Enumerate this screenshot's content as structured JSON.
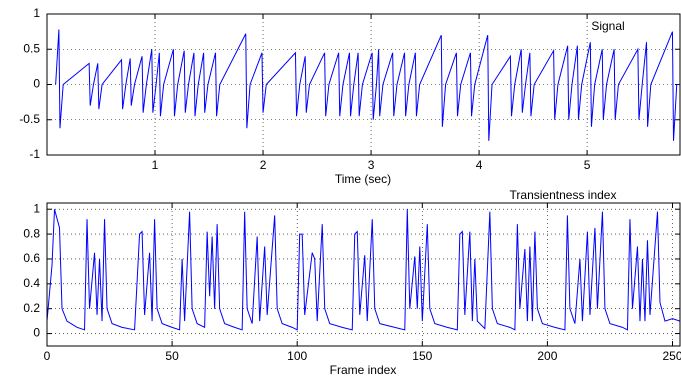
{
  "chart_data": [
    {
      "type": "line",
      "title": "Signal",
      "x_label": "Time (sec)",
      "xlim": [
        0,
        5.86
      ],
      "ylim": [
        -1,
        1
      ],
      "xticks": [
        1,
        2,
        3,
        4,
        5
      ],
      "yticks": [
        -1,
        -0.5,
        0,
        0.5,
        1
      ],
      "grid": true,
      "series": [
        {
          "name": "Signal",
          "color": "#0000ff",
          "x": [
            0.08,
            0.11,
            0.12,
            0.15,
            0.39,
            0.4,
            0.43,
            0.47,
            0.48,
            0.51,
            0.69,
            0.7,
            0.73,
            0.77,
            0.78,
            0.81,
            0.88,
            0.89,
            0.92,
            0.97,
            0.98,
            1.01,
            1.04,
            1.05,
            1.08,
            1.17,
            1.18,
            1.21,
            1.27,
            1.28,
            1.31,
            1.36,
            1.37,
            1.4,
            1.45,
            1.46,
            1.49,
            1.56,
            1.57,
            1.6,
            1.84,
            1.85,
            1.88,
            1.99,
            2.0,
            2.03,
            2.3,
            2.31,
            2.34,
            2.39,
            2.4,
            2.43,
            2.57,
            2.58,
            2.61,
            2.7,
            2.71,
            2.74,
            2.8,
            2.81,
            2.84,
            2.88,
            2.89,
            2.92,
            3.01,
            3.02,
            3.05,
            3.07,
            3.08,
            3.11,
            3.2,
            3.21,
            3.24,
            3.31,
            3.32,
            3.35,
            3.41,
            3.42,
            3.45,
            3.65,
            3.66,
            3.69,
            3.79,
            3.8,
            3.83,
            3.92,
            3.93,
            3.96,
            4.08,
            4.09,
            4.12,
            4.29,
            4.3,
            4.33,
            4.39,
            4.4,
            4.43,
            4.47,
            4.48,
            4.51,
            4.69,
            4.7,
            4.73,
            4.82,
            4.83,
            4.86,
            4.91,
            4.92,
            4.95,
            5.03,
            5.04,
            5.07,
            5.14,
            5.15,
            5.18,
            5.25,
            5.26,
            5.29,
            5.47,
            5.48,
            5.51,
            5.55,
            5.56,
            5.59,
            5.79,
            5.8,
            5.83,
            5.86
          ],
          "values": [
            0,
            0.78,
            -0.62,
            0,
            0.3,
            -0.3,
            0,
            0.3,
            -0.35,
            0,
            0.35,
            -0.35,
            0,
            0.37,
            -0.3,
            0,
            0.4,
            -0.4,
            0,
            0.5,
            -0.4,
            0,
            0.45,
            -0.45,
            0,
            0.5,
            -0.45,
            0,
            0.48,
            -0.4,
            0,
            0.45,
            -0.45,
            0,
            0.45,
            -0.4,
            0,
            0.45,
            -0.45,
            0,
            0.72,
            -0.62,
            0,
            0.45,
            -0.4,
            0,
            0.45,
            -0.45,
            0,
            0.4,
            -0.4,
            0,
            0.45,
            -0.45,
            0,
            0.45,
            -0.45,
            0,
            0.45,
            -0.45,
            0,
            0.45,
            -0.45,
            0,
            0.45,
            -0.5,
            0,
            0.5,
            -0.45,
            0,
            0.45,
            -0.45,
            0,
            0.45,
            -0.45,
            0,
            0.45,
            -0.45,
            0,
            0.7,
            -0.6,
            0,
            0.45,
            -0.45,
            0,
            0.45,
            -0.45,
            0,
            0.7,
            -0.8,
            0,
            0.4,
            -0.45,
            0,
            0.5,
            -0.4,
            0,
            0.45,
            -0.45,
            0,
            0.48,
            -0.5,
            0,
            0.55,
            -0.5,
            0,
            0.55,
            -0.5,
            0,
            0.6,
            -0.6,
            0,
            0.5,
            -0.5,
            0,
            0.5,
            -0.5,
            0,
            0.5,
            -0.5,
            0,
            0.6,
            -0.6,
            0,
            0.75,
            -0.8,
            0,
            0
          ]
        }
      ]
    },
    {
      "type": "line",
      "title": "Transientness index",
      "x_label": "Frame index",
      "xlim": [
        0,
        253
      ],
      "ylim": [
        -0.1,
        1.05
      ],
      "xticks": [
        0,
        50,
        100,
        150,
        200,
        250
      ],
      "yticks": [
        0,
        0.2,
        0.4,
        0.6,
        0.8,
        1
      ],
      "grid": true,
      "series": [
        {
          "name": "Transientness index",
          "color": "#0000ff",
          "x": [
            0,
            2,
            3,
            5,
            6,
            8,
            12,
            15,
            16,
            17,
            19,
            20,
            21,
            22,
            23,
            24,
            26,
            30,
            35,
            37,
            38,
            39,
            41,
            42,
            43,
            44,
            46,
            50,
            53,
            54,
            55,
            57,
            58,
            60,
            63,
            64,
            65,
            66,
            67,
            68,
            69,
            71,
            75,
            78,
            79,
            80,
            82,
            84,
            85,
            87,
            88,
            91,
            92,
            94,
            98,
            100,
            101,
            102,
            103,
            106,
            107,
            108,
            110,
            111,
            113,
            118,
            122,
            123,
            124,
            125,
            127,
            128,
            130,
            131,
            133,
            139,
            143,
            144,
            145,
            147,
            148,
            149,
            150,
            152,
            153,
            155,
            160,
            164,
            165,
            166,
            167,
            169,
            170,
            171,
            172,
            175,
            177,
            178,
            180,
            185,
            187,
            188,
            189,
            191,
            192,
            193,
            194,
            195,
            196,
            198,
            203,
            207,
            208,
            209,
            211,
            213,
            214,
            216,
            217,
            219,
            220,
            222,
            223,
            225,
            230,
            232,
            233,
            234,
            236,
            237,
            238,
            239,
            240,
            241,
            244,
            245,
            247,
            250,
            253
          ],
          "values": [
            0.1,
            0.55,
            1.0,
            0.85,
            0.2,
            0.1,
            0.05,
            0.03,
            0.92,
            0.2,
            0.65,
            0.15,
            0.6,
            0.1,
            0.92,
            0.2,
            0.08,
            0.05,
            0.03,
            0.8,
            0.82,
            0.15,
            0.65,
            0.1,
            0.92,
            0.2,
            0.08,
            0.05,
            0.03,
            0.6,
            0.1,
            0.98,
            0.2,
            0.08,
            0.05,
            0.82,
            0.3,
            0.78,
            0.2,
            0.88,
            0.2,
            0.08,
            0.05,
            0.03,
            0.98,
            0.2,
            0.08,
            0.78,
            0.1,
            0.7,
            0.15,
            0.95,
            0.2,
            0.08,
            0.05,
            0.03,
            0.8,
            0.8,
            0.15,
            0.65,
            0.6,
            0.1,
            0.88,
            0.2,
            0.08,
            0.05,
            0.03,
            0.8,
            0.82,
            0.15,
            0.63,
            0.1,
            0.92,
            0.2,
            0.08,
            0.05,
            0.03,
            1.0,
            0.2,
            0.62,
            0.2,
            0.7,
            0.1,
            0.88,
            0.2,
            0.08,
            0.05,
            0.03,
            0.8,
            0.82,
            0.15,
            0.82,
            0.1,
            0.6,
            0.1,
            0.04,
            0.98,
            0.2,
            0.08,
            0.05,
            0.03,
            0.88,
            0.2,
            0.68,
            0.1,
            0.7,
            0.1,
            0.82,
            0.2,
            0.08,
            0.05,
            0.03,
            0.95,
            0.2,
            0.08,
            0.6,
            0.1,
            0.82,
            0.15,
            0.85,
            0.2,
            0.98,
            0.2,
            0.08,
            0.05,
            0.03,
            0.92,
            0.2,
            0.7,
            0.1,
            0.6,
            0.1,
            0.75,
            0.15,
            0.98,
            0.25,
            0.1,
            0.12,
            0.1
          ]
        }
      ]
    }
  ]
}
